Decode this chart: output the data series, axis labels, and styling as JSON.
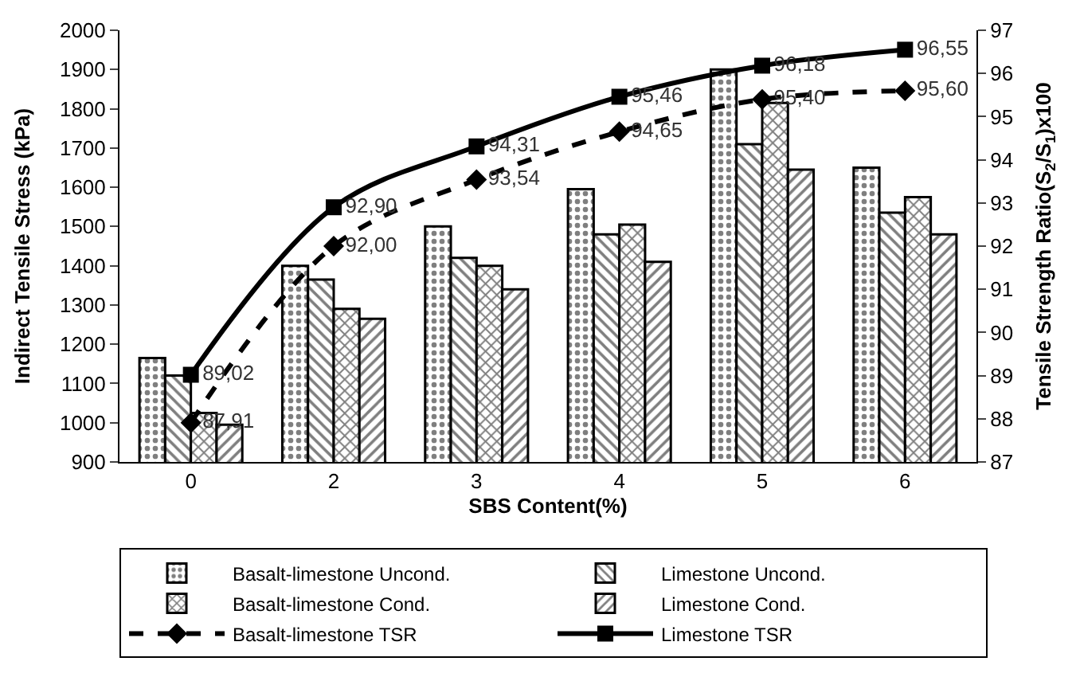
{
  "chart_data": {
    "type": "bar",
    "xlabel": "SBS Content(%)",
    "ylabel": "Indirect Tensile Stress (kPa)",
    "y2label": "Tensile Strength Ratio(S$_{2}$/S$_{1}$)x100",
    "categories": [
      "0",
      "2",
      "3",
      "4",
      "5",
      "6"
    ],
    "series": [
      {
        "name": "Basalt-limestone Uncond.",
        "color": "#000000",
        "values": [
          1165,
          1400,
          1500,
          1595,
          1900,
          1650
        ]
      },
      {
        "name": "Limestone Uncond.",
        "color": "#000000",
        "values": [
          1120,
          1365,
          1420,
          1480,
          1710,
          1535
        ]
      },
      {
        "name": "Basalt-limestone Cond.",
        "color": "#000000",
        "values": [
          1025,
          1290,
          1400,
          1505,
          1815,
          1575
        ]
      },
      {
        "name": "Limestone Cond.",
        "color": "#000000",
        "values": [
          995,
          1265,
          1340,
          1410,
          1645,
          1480
        ]
      },
      {
        "name": "Basalt-limestone TSR",
        "type": "line",
        "axis": "y2",
        "color": "#000000",
        "marker": "diamond",
        "line_style": "dashed",
        "values": [
          87.91,
          92.0,
          93.54,
          94.65,
          95.4,
          95.6
        ],
        "value_labels": [
          "87,91",
          "92,00",
          "93,54",
          "94,65",
          "95,40",
          "95,60"
        ]
      },
      {
        "name": "Limestone TSR",
        "type": "line",
        "axis": "y2",
        "color": "#000000",
        "marker": "square",
        "line_style": "solid",
        "values": [
          89.02,
          92.9,
          94.31,
          95.46,
          96.18,
          96.55
        ],
        "value_labels": [
          "89,02",
          "92,90",
          "94,31",
          "95,46",
          "96,18",
          "96,55"
        ]
      }
    ],
    "ylim": [
      900,
      2000
    ],
    "yticks": [
      900,
      1000,
      1100,
      1200,
      1300,
      1400,
      1500,
      1600,
      1700,
      1800,
      1900,
      2000
    ],
    "y2lim": [
      87,
      97
    ],
    "y2ticks": [
      87,
      88,
      89,
      90,
      91,
      92,
      93,
      94,
      95,
      96,
      97
    ],
    "legend": "bottom"
  }
}
